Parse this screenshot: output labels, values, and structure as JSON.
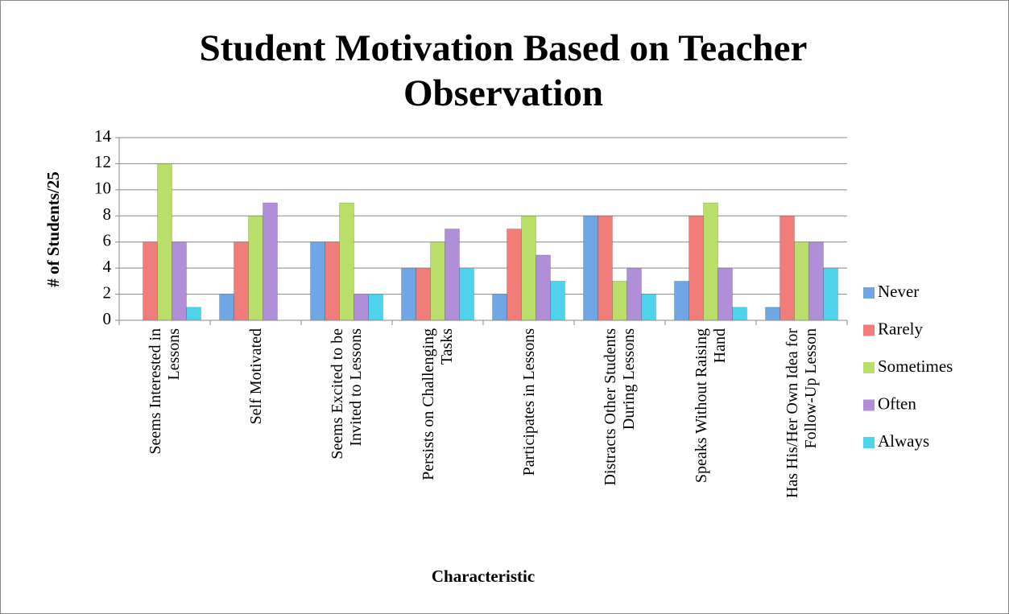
{
  "chart_data": {
    "type": "bar",
    "title": "Student Motivation Based on Teacher Observation",
    "x_label": "Characteristic",
    "y_label": "# of Students/25",
    "categories": [
      "Seems Interested in Lessons",
      "Self Motivated",
      "Seems Excited to be Invited to Lessons",
      "Persists on Challenging Tasks",
      "Participates in Lessons",
      "Distracts Other Students During Lessons",
      "Speaks Without Raising Hand",
      "Has His/Her Own Idea for Follow-Up Lesson"
    ],
    "series": [
      {
        "name": "Never",
        "color": "#6ea6e6",
        "values": [
          0,
          2,
          6,
          4,
          2,
          8,
          3,
          1
        ]
      },
      {
        "name": "Rarely",
        "color": "#f07d7a",
        "values": [
          6,
          6,
          6,
          4,
          7,
          8,
          8,
          8
        ]
      },
      {
        "name": "Sometimes",
        "color": "#b9de6a",
        "values": [
          12,
          8,
          9,
          6,
          8,
          3,
          9,
          6
        ]
      },
      {
        "name": "Often",
        "color": "#b08ed8",
        "values": [
          6,
          9,
          2,
          7,
          5,
          4,
          4,
          6
        ]
      },
      {
        "name": "Always",
        "color": "#4fd3ec",
        "values": [
          1,
          0,
          2,
          4,
          3,
          2,
          1,
          4
        ]
      }
    ],
    "ylim": [
      0,
      14
    ],
    "yticks": [
      0,
      2,
      4,
      6,
      8,
      10,
      12,
      14
    ],
    "grid": true,
    "legend": "right"
  }
}
